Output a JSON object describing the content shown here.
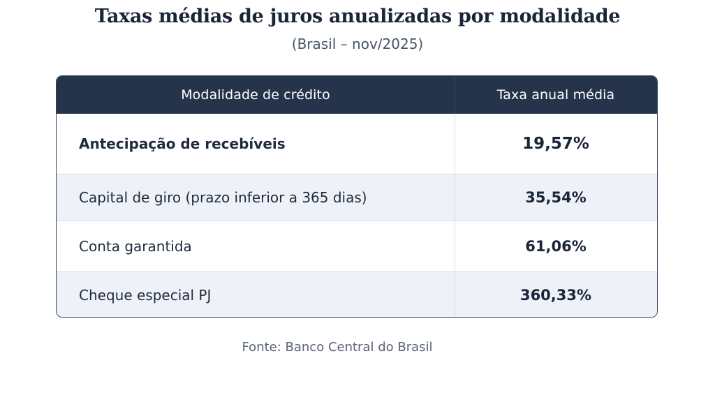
{
  "title": "Taxas médias de juros anualizadas por modalidade",
  "subtitle": "(Brasil – nov/2025)",
  "source": "Fonte: Banco Central do Brasil",
  "colors": {
    "header_background": "#25344a",
    "header_text": "#ffffff",
    "alt_row_background": "#eef2f8",
    "text": "#1a2538"
  },
  "chart_data": {
    "type": "table",
    "title": "Taxas médias de juros anualizadas por modalidade",
    "subtitle": "(Brasil – nov/2025)",
    "columns": [
      "Modalidade de crédito",
      "Taxa anual média"
    ],
    "rows": [
      {
        "modalidade": "Antecipação de recebíveis",
        "taxa": "19,57%"
      },
      {
        "modalidade": "Capital de giro (prazo inferior a 365 dias)",
        "taxa": "35,54%"
      },
      {
        "modalidade": "Conta garantida",
        "taxa": "61,06%"
      },
      {
        "modalidade": "Cheque especial PJ",
        "taxa": "360,33%"
      }
    ],
    "values": [
      19.57,
      35.54,
      61.06,
      360.33
    ],
    "unit": "%",
    "source": "Fonte: Banco Central do Brasil"
  }
}
